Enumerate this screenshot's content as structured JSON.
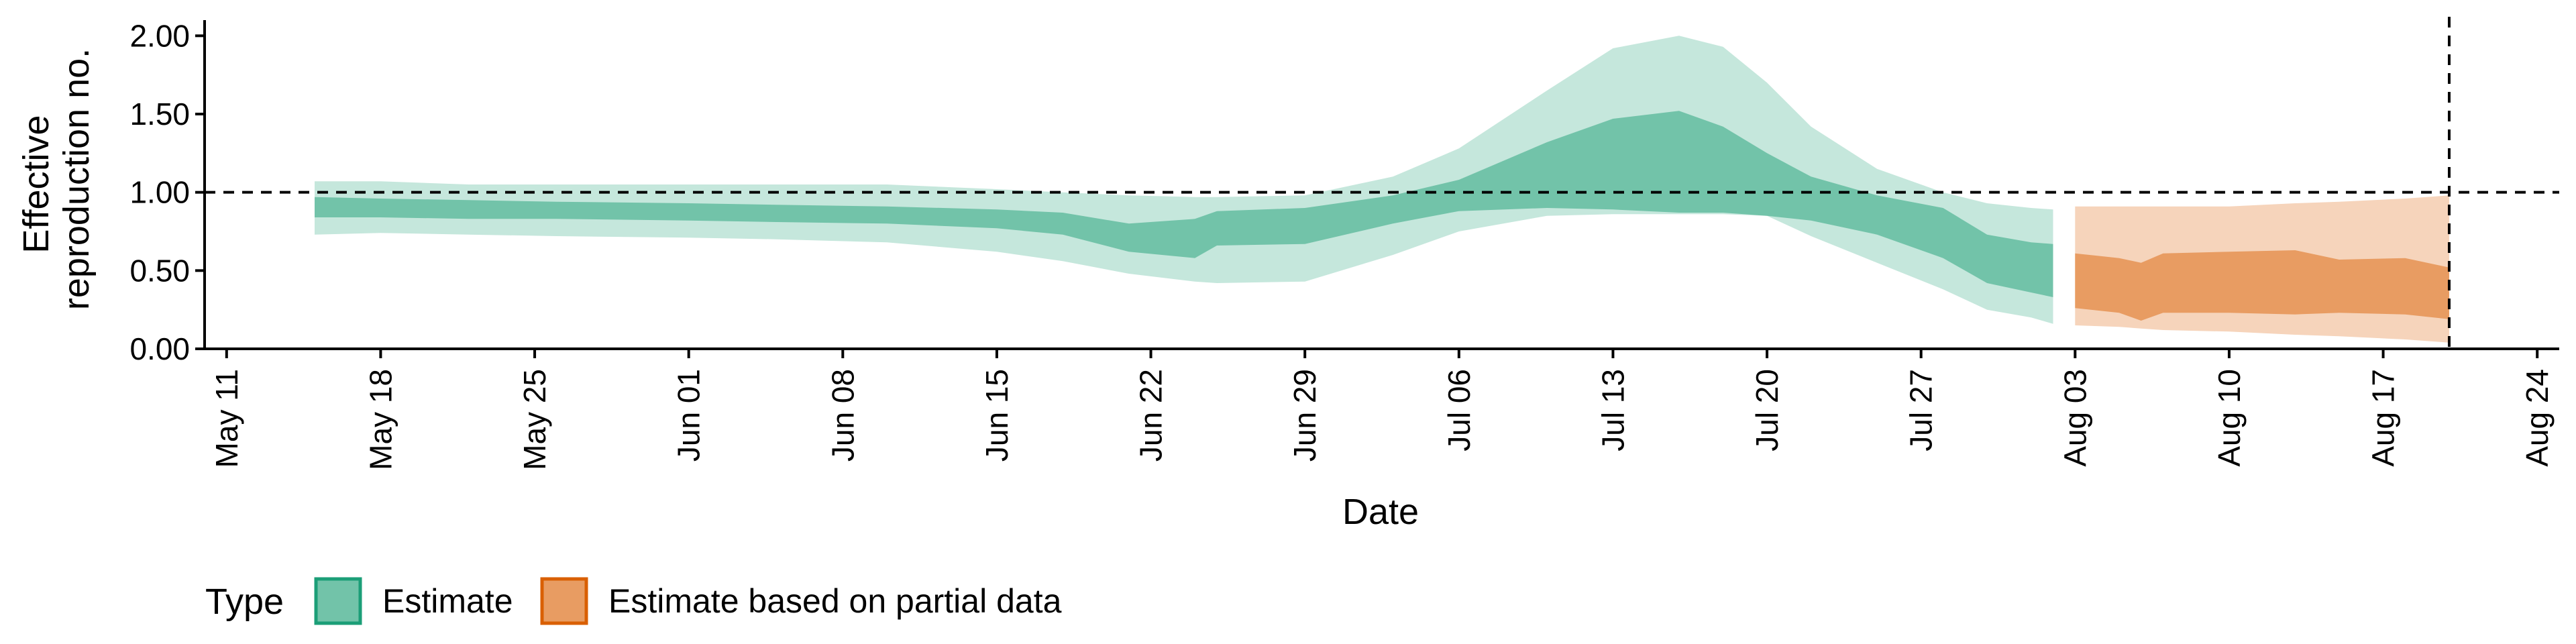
{
  "chart_data": {
    "type": "area",
    "xlabel": "Date",
    "ylabel": [
      "Effective",
      "reproduction no."
    ],
    "ylim": [
      0,
      2.1
    ],
    "xlim": [
      "2020-05-10",
      "2020-08-25"
    ],
    "yticks": [
      {
        "value": 0,
        "label": "0.00"
      },
      {
        "value": 0.5,
        "label": "0.50"
      },
      {
        "value": 1,
        "label": "1.00"
      },
      {
        "value": 1.5,
        "label": "1.50"
      },
      {
        "value": 2,
        "label": "2.00"
      }
    ],
    "xticks": [
      {
        "date": "2020-05-11",
        "label": "May 11"
      },
      {
        "date": "2020-05-18",
        "label": "May 18"
      },
      {
        "date": "2020-05-25",
        "label": "May 25"
      },
      {
        "date": "2020-06-01",
        "label": "Jun 01"
      },
      {
        "date": "2020-06-08",
        "label": "Jun 08"
      },
      {
        "date": "2020-06-15",
        "label": "Jun 15"
      },
      {
        "date": "2020-06-22",
        "label": "Jun 22"
      },
      {
        "date": "2020-06-29",
        "label": "Jun 29"
      },
      {
        "date": "2020-07-06",
        "label": "Jul 06"
      },
      {
        "date": "2020-07-13",
        "label": "Jul 13"
      },
      {
        "date": "2020-07-20",
        "label": "Jul 20"
      },
      {
        "date": "2020-07-27",
        "label": "Jul 27"
      },
      {
        "date": "2020-08-03",
        "label": "Aug 03"
      },
      {
        "date": "2020-08-10",
        "label": "Aug 10"
      },
      {
        "date": "2020-08-17",
        "label": "Aug 17"
      },
      {
        "date": "2020-08-24",
        "label": "Aug 24"
      }
    ],
    "reference_hline": 1.0,
    "reference_vline": "2020-08-20",
    "grid": false,
    "legend": {
      "title": "Type",
      "position": "bottom-left",
      "entries": [
        {
          "label": "Estimate",
          "fill": "#72c3a9",
          "stroke": "#1b9e77"
        },
        {
          "label": "Estimate based on partial data",
          "fill": "#e89c62",
          "stroke": "#d95f02"
        }
      ]
    },
    "series": [
      {
        "name": "Estimate",
        "colors": {
          "outer": "#c5e7dc",
          "inner": "#72c3a9"
        },
        "points": [
          {
            "date": "2020-05-15",
            "outer": [
              0.73,
              1.07
            ],
            "inner": [
              0.84,
              0.97
            ]
          },
          {
            "date": "2020-05-18",
            "outer": [
              0.74,
              1.07
            ],
            "inner": [
              0.84,
              0.96
            ]
          },
          {
            "date": "2020-05-22",
            "outer": [
              0.73,
              1.05
            ],
            "inner": [
              0.83,
              0.95
            ]
          },
          {
            "date": "2020-05-26",
            "outer": [
              0.72,
              1.05
            ],
            "inner": [
              0.83,
              0.94
            ]
          },
          {
            "date": "2020-06-01",
            "outer": [
              0.71,
              1.05
            ],
            "inner": [
              0.82,
              0.93
            ]
          },
          {
            "date": "2020-06-05",
            "outer": [
              0.7,
              1.05
            ],
            "inner": [
              0.81,
              0.92
            ]
          },
          {
            "date": "2020-06-10",
            "outer": [
              0.68,
              1.05
            ],
            "inner": [
              0.8,
              0.91
            ]
          },
          {
            "date": "2020-06-15",
            "outer": [
              0.62,
              1.02
            ],
            "inner": [
              0.77,
              0.89
            ]
          },
          {
            "date": "2020-06-18",
            "outer": [
              0.56,
              1.0
            ],
            "inner": [
              0.73,
              0.87
            ]
          },
          {
            "date": "2020-06-21",
            "outer": [
              0.48,
              0.98
            ],
            "inner": [
              0.62,
              0.8
            ]
          },
          {
            "date": "2020-06-24",
            "outer": [
              0.43,
              0.97
            ],
            "inner": [
              0.58,
              0.83
            ]
          },
          {
            "date": "2020-06-25",
            "outer": [
              0.42,
              0.97
            ],
            "inner": [
              0.66,
              0.88
            ]
          },
          {
            "date": "2020-06-29",
            "outer": [
              0.43,
              0.98
            ],
            "inner": [
              0.67,
              0.9
            ]
          },
          {
            "date": "2020-07-03",
            "outer": [
              0.6,
              1.1
            ],
            "inner": [
              0.8,
              0.98
            ]
          },
          {
            "date": "2020-07-06",
            "outer": [
              0.75,
              1.28
            ],
            "inner": [
              0.88,
              1.08
            ]
          },
          {
            "date": "2020-07-10",
            "outer": [
              0.85,
              1.65
            ],
            "inner": [
              0.9,
              1.32
            ]
          },
          {
            "date": "2020-07-13",
            "outer": [
              0.86,
              1.92
            ],
            "inner": [
              0.89,
              1.47
            ]
          },
          {
            "date": "2020-07-16",
            "outer": [
              0.86,
              2.0
            ],
            "inner": [
              0.87,
              1.52
            ]
          },
          {
            "date": "2020-07-18",
            "outer": [
              0.86,
              1.93
            ],
            "inner": [
              0.87,
              1.42
            ]
          },
          {
            "date": "2020-07-20",
            "outer": [
              0.85,
              1.7
            ],
            "inner": [
              0.85,
              1.25
            ]
          },
          {
            "date": "2020-07-22",
            "outer": [
              0.72,
              1.42
            ],
            "inner": [
              0.82,
              1.1
            ]
          },
          {
            "date": "2020-07-25",
            "outer": [
              0.55,
              1.15
            ],
            "inner": [
              0.73,
              0.98
            ]
          },
          {
            "date": "2020-07-28",
            "outer": [
              0.38,
              1.0
            ],
            "inner": [
              0.58,
              0.9
            ]
          },
          {
            "date": "2020-07-30",
            "outer": [
              0.25,
              0.93
            ],
            "inner": [
              0.42,
              0.73
            ]
          },
          {
            "date": "2020-08-01",
            "outer": [
              0.2,
              0.9
            ],
            "inner": [
              0.36,
              0.68
            ]
          },
          {
            "date": "2020-08-02",
            "outer": [
              0.16,
              0.89
            ],
            "inner": [
              0.33,
              0.67
            ]
          }
        ]
      },
      {
        "name": "Estimate based on partial data",
        "colors": {
          "outer": "#f6d4bb",
          "inner": "#e89c62"
        },
        "points": [
          {
            "date": "2020-08-03",
            "outer": [
              0.15,
              0.91
            ],
            "inner": [
              0.26,
              0.61
            ]
          },
          {
            "date": "2020-08-05",
            "outer": [
              0.14,
              0.91
            ],
            "inner": [
              0.23,
              0.58
            ]
          },
          {
            "date": "2020-08-06",
            "outer": [
              0.13,
              0.91
            ],
            "inner": [
              0.18,
              0.55
            ]
          },
          {
            "date": "2020-08-07",
            "outer": [
              0.12,
              0.91
            ],
            "inner": [
              0.23,
              0.61
            ]
          },
          {
            "date": "2020-08-10",
            "outer": [
              0.11,
              0.91
            ],
            "inner": [
              0.23,
              0.62
            ]
          },
          {
            "date": "2020-08-13",
            "outer": [
              0.09,
              0.93
            ],
            "inner": [
              0.22,
              0.63
            ]
          },
          {
            "date": "2020-08-15",
            "outer": [
              0.08,
              0.94
            ],
            "inner": [
              0.23,
              0.57
            ]
          },
          {
            "date": "2020-08-18",
            "outer": [
              0.06,
              0.96
            ],
            "inner": [
              0.22,
              0.58
            ]
          },
          {
            "date": "2020-08-20",
            "outer": [
              0.04,
              0.98
            ],
            "inner": [
              0.19,
              0.52
            ]
          }
        ]
      }
    ]
  }
}
